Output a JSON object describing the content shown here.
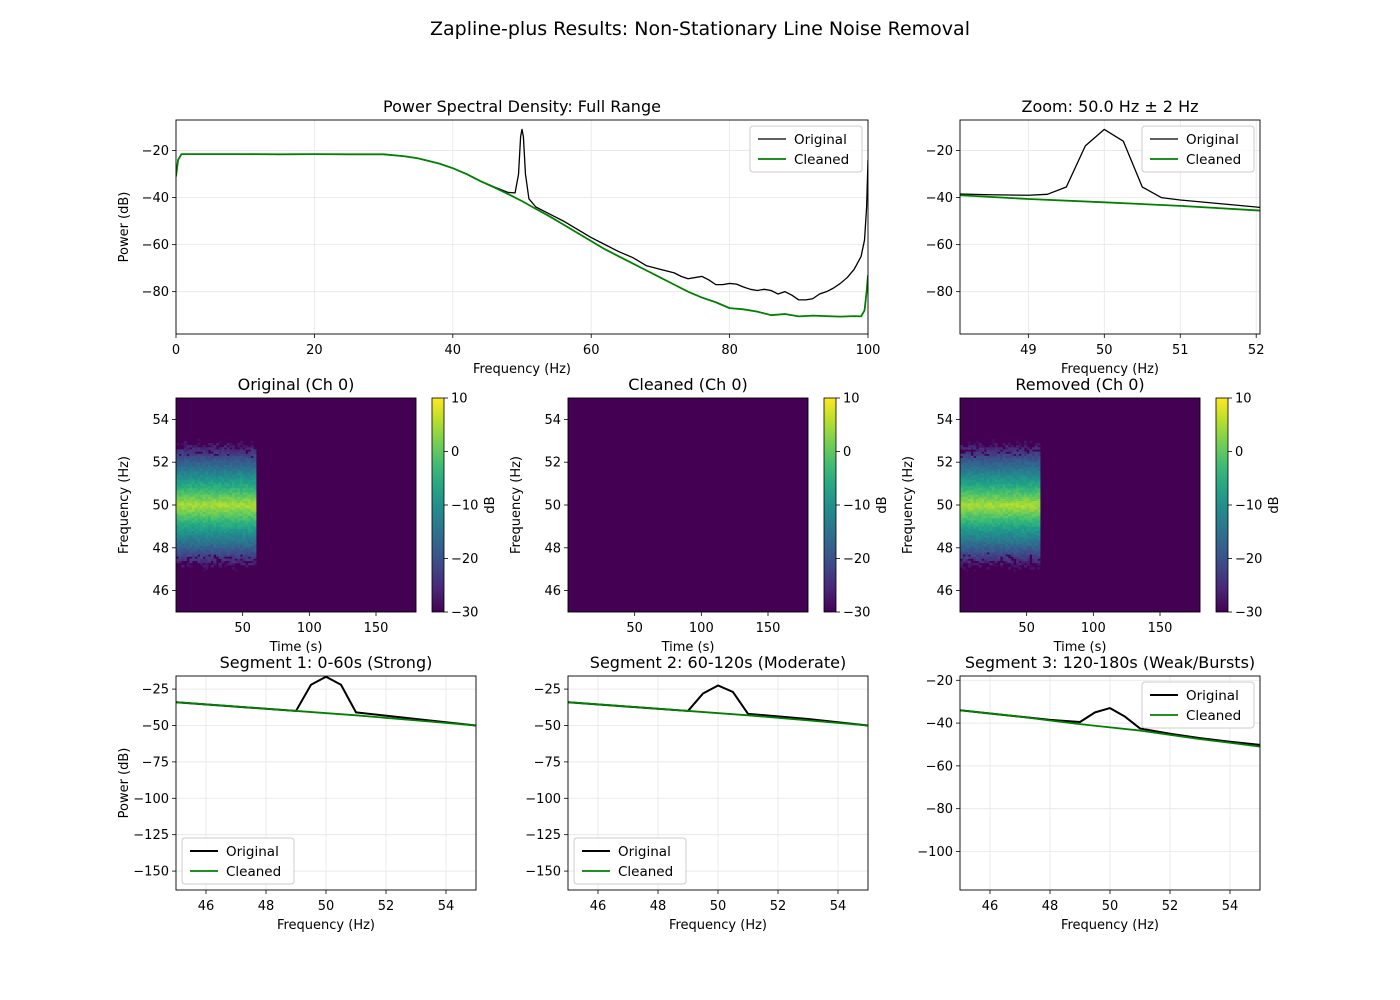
{
  "suptitle": "Zapline-plus Results: Non-Stationary Line Noise Removal",
  "colors": {
    "original": "#000000",
    "cleaned": "#008000",
    "grid": "#e6e6e6"
  },
  "chart_data": [
    {
      "id": "psd-full",
      "type": "line",
      "title": "Power Spectral Density: Full Range",
      "xlabel": "Frequency (Hz)",
      "ylabel": "Power (dB)",
      "xlim": [
        0,
        100
      ],
      "ylim": [
        -98,
        -7
      ],
      "xticks": [
        0,
        20,
        40,
        60,
        80,
        100
      ],
      "yticks": [
        -80,
        -60,
        -40,
        -20
      ],
      "grid": true,
      "legend": "top-right",
      "series": [
        {
          "name": "Original",
          "color": "#000000",
          "width": 1.3,
          "x": [
            0,
            0.3,
            0.8,
            2,
            5,
            10,
            15,
            20,
            25,
            30,
            33,
            35,
            38,
            40,
            42,
            44,
            46,
            48,
            49,
            49.5,
            49.8,
            50,
            50.2,
            50.5,
            51,
            52,
            54,
            56,
            58,
            60,
            62,
            64,
            66,
            68,
            70,
            72,
            73,
            74,
            75,
            76,
            77,
            78,
            79,
            80,
            81,
            82,
            83,
            84,
            85,
            86,
            87,
            88,
            89,
            90,
            91,
            92,
            93,
            94,
            95,
            96,
            97,
            98,
            99,
            99.5,
            99.8,
            100
          ],
          "y": [
            -31,
            -24,
            -21.5,
            -21.5,
            -21.5,
            -21.5,
            -21.6,
            -21.5,
            -21.6,
            -21.6,
            -22.4,
            -23.3,
            -25.5,
            -27.5,
            -30,
            -33,
            -35.5,
            -37.8,
            -38,
            -30,
            -14,
            -11,
            -14,
            -30,
            -40.5,
            -44,
            -47,
            -50,
            -53.5,
            -57,
            -60,
            -63,
            -65.5,
            -69,
            -70.5,
            -72,
            -73.5,
            -74.5,
            -74,
            -73.5,
            -75,
            -77,
            -77,
            -76.5,
            -76.8,
            -78,
            -79,
            -79.5,
            -79,
            -79.5,
            -81,
            -80,
            -81.5,
            -83.5,
            -83.5,
            -83,
            -81,
            -80,
            -78.5,
            -76.5,
            -74,
            -70.5,
            -65,
            -58,
            -44,
            -24
          ]
        },
        {
          "name": "Cleaned",
          "color": "#008000",
          "width": 1.8,
          "x": [
            0,
            0.3,
            0.8,
            2,
            5,
            10,
            15,
            20,
            25,
            30,
            33,
            35,
            38,
            40,
            42,
            44,
            46,
            48,
            50,
            52,
            54,
            56,
            58,
            60,
            62,
            64,
            66,
            68,
            70,
            72,
            74,
            76,
            78,
            80,
            82,
            84,
            86,
            88,
            90,
            92,
            94,
            96,
            98,
            99,
            99.5,
            99.8,
            100
          ],
          "y": [
            -31,
            -24,
            -21.5,
            -21.5,
            -21.5,
            -21.5,
            -21.6,
            -21.5,
            -21.6,
            -21.6,
            -22.4,
            -23.3,
            -25.5,
            -27.5,
            -30,
            -33,
            -35.7,
            -38.5,
            -41.5,
            -44.8,
            -48,
            -51.5,
            -55,
            -58.5,
            -62,
            -65,
            -68,
            -71,
            -74,
            -77,
            -80,
            -82.5,
            -84.5,
            -87,
            -87.5,
            -88.5,
            -90,
            -89.5,
            -90.5,
            -90.2,
            -90.4,
            -90.6,
            -90.4,
            -90.5,
            -88,
            -80,
            -73
          ]
        }
      ]
    },
    {
      "id": "psd-zoom",
      "type": "line",
      "title": "Zoom: 50.0 Hz ± 2 Hz",
      "xlabel": "Frequency (Hz)",
      "ylabel": "",
      "xlim": [
        48.1,
        52.05
      ],
      "ylim": [
        -98,
        -7
      ],
      "xticks": [
        49,
        50,
        51,
        52
      ],
      "yticks": [
        -80,
        -60,
        -40,
        -20
      ],
      "grid": true,
      "legend": "top-right",
      "series": [
        {
          "name": "Original",
          "color": "#000000",
          "width": 1.3,
          "x": [
            48.1,
            48.5,
            49,
            49.25,
            49.5,
            49.75,
            50,
            50.25,
            50.5,
            50.75,
            51,
            51.5,
            52,
            52.05
          ],
          "y": [
            -38.5,
            -38.8,
            -39,
            -38.6,
            -35.5,
            -18,
            -11,
            -16,
            -35.5,
            -40,
            -41,
            -42.5,
            -44,
            -44.2
          ]
        },
        {
          "name": "Cleaned",
          "color": "#008000",
          "width": 1.8,
          "x": [
            48.1,
            49,
            50,
            51,
            52.05
          ],
          "y": [
            -39,
            -40.6,
            -42,
            -43.5,
            -45.5
          ]
        }
      ]
    },
    {
      "id": "spec-original",
      "type": "heatmap",
      "title": "Original (Ch 0)",
      "xlabel": "Time (s)",
      "ylabel": "Frequency (Hz)",
      "xlim": [
        0,
        180
      ],
      "ylim": [
        45,
        55
      ],
      "xticks": [
        50,
        100,
        150
      ],
      "yticks": [
        46,
        48,
        50,
        52,
        54
      ],
      "colorbar": {
        "label": "dB",
        "range": [
          -30,
          10
        ],
        "ticks": [
          10,
          0,
          -10,
          -20,
          -30
        ]
      },
      "noise": {
        "t_start": 0,
        "t_end": 60,
        "center_hz": 50,
        "peak_db": 5
      }
    },
    {
      "id": "spec-cleaned",
      "type": "heatmap",
      "title": "Cleaned (Ch 0)",
      "xlabel": "Time (s)",
      "ylabel": "Frequency (Hz)",
      "xlim": [
        0,
        180
      ],
      "ylim": [
        45,
        55
      ],
      "xticks": [
        50,
        100,
        150
      ],
      "yticks": [
        46,
        48,
        50,
        52,
        54
      ],
      "colorbar": {
        "label": "dB",
        "range": [
          -30,
          10
        ],
        "ticks": [
          10,
          0,
          -10,
          -20,
          -30
        ]
      }
    },
    {
      "id": "spec-removed",
      "type": "heatmap",
      "title": "Removed (Ch 0)",
      "xlabel": "Time (s)",
      "ylabel": "Frequency (Hz)",
      "xlim": [
        0,
        180
      ],
      "ylim": [
        45,
        55
      ],
      "xticks": [
        50,
        100,
        150
      ],
      "yticks": [
        46,
        48,
        50,
        52,
        54
      ],
      "colorbar": {
        "label": "dB",
        "range": [
          -30,
          10
        ],
        "ticks": [
          10,
          0,
          -10,
          -20,
          -30
        ]
      },
      "noise": {
        "t_start": 0,
        "t_end": 60,
        "center_hz": 50,
        "peak_db": 5
      }
    },
    {
      "id": "seg1",
      "type": "line",
      "title": "Segment 1: 0-60s (Strong)",
      "xlabel": "Frequency (Hz)",
      "ylabel": "Power (dB)",
      "xlim": [
        45,
        55
      ],
      "ylim": [
        -163,
        -16
      ],
      "xticks": [
        46,
        48,
        50,
        52,
        54
      ],
      "yticks": [
        -150,
        -125,
        -100,
        -75,
        -50,
        -25
      ],
      "grid": true,
      "legend": "bottom-left",
      "series": [
        {
          "name": "Original",
          "color": "#000000",
          "width": 2,
          "x": [
            45,
            47,
            49,
            49.5,
            50,
            50.5,
            51,
            53,
            55
          ],
          "y": [
            -34,
            -37,
            -40,
            -22,
            -16.5,
            -22,
            -41,
            -45.5,
            -50
          ]
        },
        {
          "name": "Cleaned",
          "color": "#008000",
          "width": 1.8,
          "x": [
            45,
            47,
            49,
            51,
            53,
            55
          ],
          "y": [
            -34,
            -37,
            -40,
            -43,
            -46.5,
            -50
          ]
        }
      ]
    },
    {
      "id": "seg2",
      "type": "line",
      "title": "Segment 2: 60-120s (Moderate)",
      "xlabel": "Frequency (Hz)",
      "ylabel": "",
      "xlim": [
        45,
        55
      ],
      "ylim": [
        -163,
        -16
      ],
      "xticks": [
        46,
        48,
        50,
        52,
        54
      ],
      "yticks": [
        -150,
        -125,
        -100,
        -75,
        -50,
        -25
      ],
      "grid": true,
      "legend": "bottom-left",
      "series": [
        {
          "name": "Original",
          "color": "#000000",
          "width": 2,
          "x": [
            45,
            47,
            49,
            49.5,
            50,
            50.5,
            51,
            53,
            55
          ],
          "y": [
            -34,
            -37,
            -40,
            -28,
            -22.5,
            -27,
            -42,
            -45.5,
            -50
          ]
        },
        {
          "name": "Cleaned",
          "color": "#008000",
          "width": 1.8,
          "x": [
            45,
            47,
            49,
            51,
            53,
            55
          ],
          "y": [
            -34,
            -37,
            -40,
            -43,
            -46.5,
            -50
          ]
        }
      ]
    },
    {
      "id": "seg3",
      "type": "line",
      "title": "Segment 3: 120-180s (Weak/Bursts)",
      "xlabel": "Frequency (Hz)",
      "ylabel": "",
      "xlim": [
        45,
        55
      ],
      "ylim": [
        -118,
        -18
      ],
      "xticks": [
        46,
        48,
        50,
        52,
        54
      ],
      "yticks": [
        -100,
        -80,
        -60,
        -40,
        -20
      ],
      "grid": true,
      "legend": "top-right",
      "series": [
        {
          "name": "Original",
          "color": "#000000",
          "width": 2,
          "x": [
            45,
            46,
            47,
            48,
            49,
            49.5,
            50,
            50.5,
            51,
            52,
            53,
            54,
            55
          ],
          "y": [
            -34,
            -35.5,
            -37,
            -38.5,
            -39.5,
            -35,
            -33,
            -37,
            -42.5,
            -45,
            -47,
            -48.7,
            -50.2
          ]
        },
        {
          "name": "Cleaned",
          "color": "#008000",
          "width": 1.8,
          "x": [
            45,
            46,
            47,
            48,
            49,
            50,
            51,
            52,
            53,
            54,
            55
          ],
          "y": [
            -34,
            -35.5,
            -37,
            -38.8,
            -40.5,
            -42,
            -43.5,
            -45.5,
            -47.5,
            -49.2,
            -51
          ]
        }
      ]
    }
  ]
}
